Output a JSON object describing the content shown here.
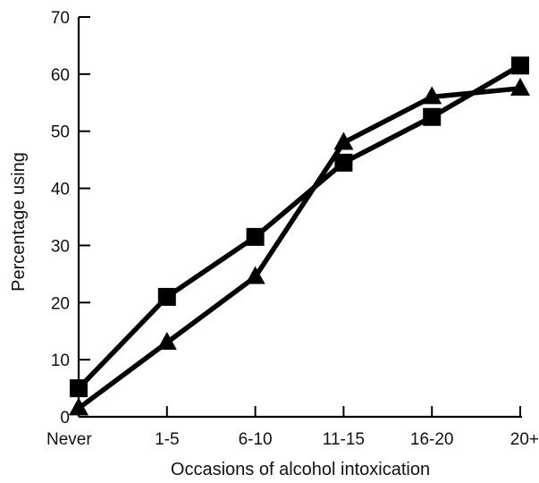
{
  "chart_data": {
    "type": "line",
    "title": "",
    "xlabel": "Occasions of alcohol intoxication",
    "ylabel": "Percentage using",
    "categories": [
      "Never",
      "1-5",
      "6-10",
      "11-15",
      "16-20",
      "20+"
    ],
    "ylim": [
      0,
      70
    ],
    "yticks": [
      "0",
      "10",
      "20",
      "30",
      "40",
      "50",
      "60",
      "70"
    ],
    "grid": false,
    "legend": "none",
    "series": [
      {
        "marker": "square",
        "color": "#000000",
        "values": [
          5,
          21,
          31.5,
          44.5,
          52.5,
          61.5
        ]
      },
      {
        "marker": "triangle",
        "color": "#000000",
        "values": [
          1.5,
          13,
          24.5,
          48,
          56,
          57.5
        ]
      }
    ]
  }
}
